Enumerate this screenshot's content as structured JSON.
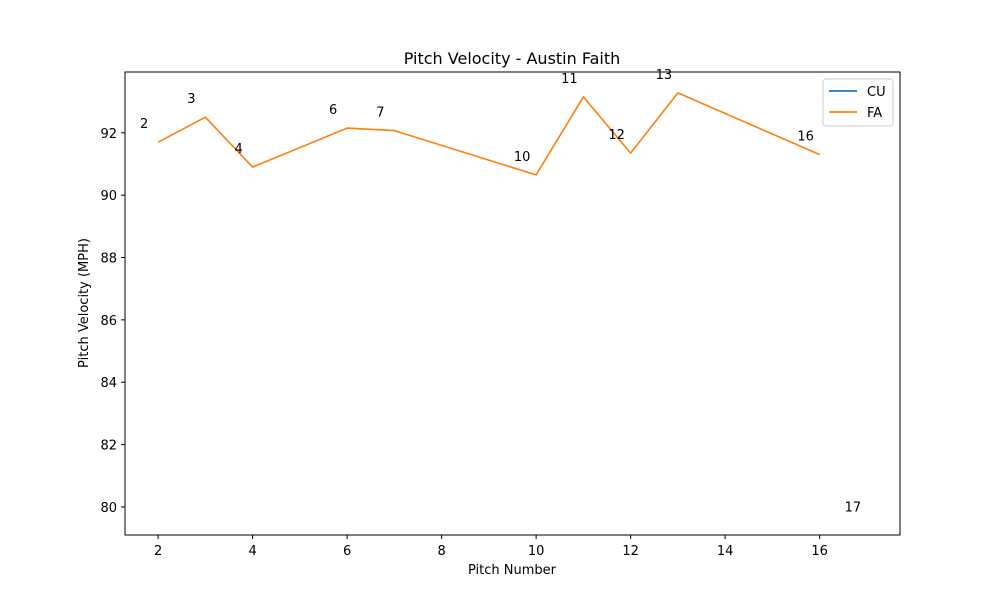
{
  "chart_data": {
    "type": "line",
    "title": "Pitch Velocity - Austin Faith",
    "xlabel": "Pitch Number",
    "ylabel": "Pitch Velocity (MPH)",
    "xlim": [
      1.3,
      17.7
    ],
    "ylim": [
      79.1,
      93.95
    ],
    "xticks": [
      2,
      4,
      6,
      8,
      10,
      12,
      14,
      16
    ],
    "yticks": [
      80,
      82,
      84,
      86,
      88,
      90,
      92
    ],
    "grid": false,
    "legend_position": "top-right",
    "series": [
      {
        "name": "CU",
        "color": "#1f77b4",
        "x": [
          17
        ],
        "y": [
          79.4
        ]
      },
      {
        "name": "FA",
        "color": "#ff7f0e",
        "x": [
          2,
          3,
          4,
          6,
          7,
          10,
          11,
          12,
          13,
          16
        ],
        "y": [
          91.7,
          92.5,
          90.9,
          92.15,
          92.07,
          90.65,
          93.15,
          91.35,
          93.28,
          91.3
        ]
      }
    ],
    "annotations": [
      {
        "text": "2",
        "x": 2,
        "y": 91.7
      },
      {
        "text": "3",
        "x": 3,
        "y": 92.5
      },
      {
        "text": "4",
        "x": 4,
        "y": 90.9
      },
      {
        "text": "6",
        "x": 6,
        "y": 92.15
      },
      {
        "text": "7",
        "x": 7,
        "y": 92.07
      },
      {
        "text": "10",
        "x": 10,
        "y": 90.65
      },
      {
        "text": "11",
        "x": 11,
        "y": 93.15
      },
      {
        "text": "12",
        "x": 12,
        "y": 91.35
      },
      {
        "text": "13",
        "x": 13,
        "y": 93.28
      },
      {
        "text": "16",
        "x": 16,
        "y": 91.3
      },
      {
        "text": "17",
        "x": 17,
        "y": 79.4
      }
    ]
  }
}
